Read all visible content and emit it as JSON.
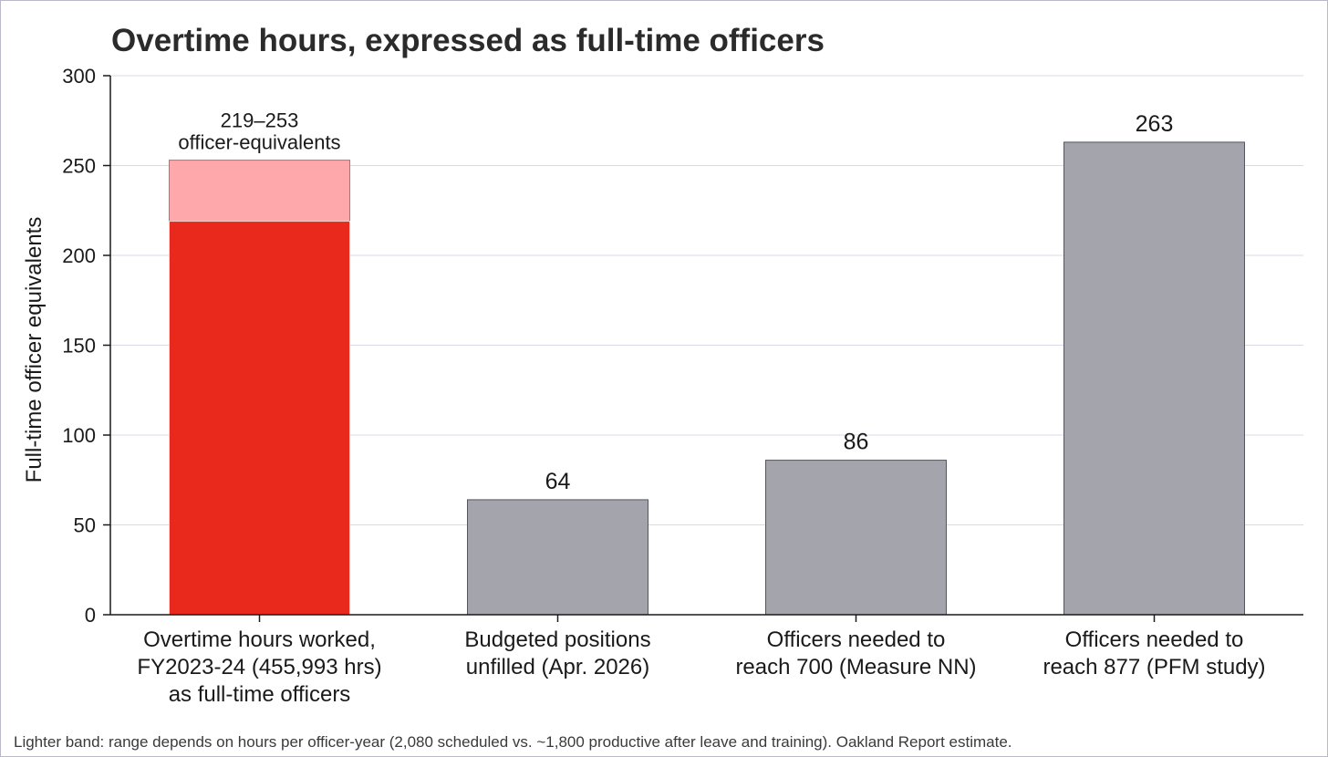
{
  "chart_data": {
    "type": "bar",
    "title": "Overtime hours, expressed as full-time officers",
    "ylabel": "Full-time officer equivalents",
    "xlabel": "",
    "ylim": [
      0,
      300
    ],
    "yticks": [
      0,
      50,
      100,
      150,
      200,
      250,
      300
    ],
    "grid": true,
    "categories": [
      [
        "Overtime hours worked,",
        "FY2023-24 (455,993 hrs)",
        "as full-time officers"
      ],
      [
        "Budgeted positions",
        "unfilled (Apr. 2026)"
      ],
      [
        "Officers needed to",
        "reach 700 (Measure NN)"
      ],
      [
        "Officers needed to",
        "reach 877 (PFM study)"
      ]
    ],
    "values": [
      219,
      64,
      86,
      263
    ],
    "range_band": {
      "category_index": 0,
      "low": 219,
      "high": 253
    },
    "data_labels": [
      [
        "219–253",
        "officer-equivalents"
      ],
      [
        "64"
      ],
      [
        "86"
      ],
      [
        "263"
      ]
    ],
    "colors": {
      "highlight": "#e8291c",
      "highlight_band": "#ffa8ab",
      "neutral": "#a4a4ad",
      "grid": "#d8d8e6",
      "axis": "#1a1a1a"
    }
  },
  "footnote": "Lighter band: range depends on hours per officer-year (2,080 scheduled vs. ~1,800 productive after leave and training). Oakland Report estimate."
}
